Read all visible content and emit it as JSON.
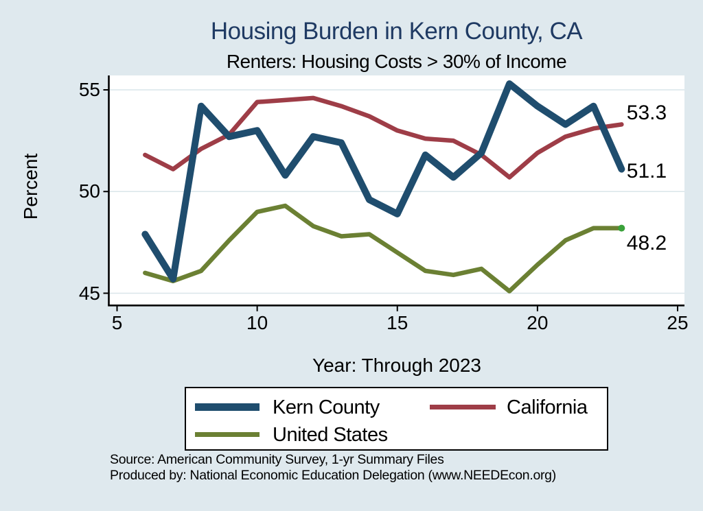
{
  "chart_data": {
    "type": "line",
    "title": "Housing Burden in Kern County, CA",
    "subtitle": "Renters: Housing Costs > 30% of Income",
    "xlabel": "Year: Through 2023",
    "ylabel": "Percent",
    "x": [
      6,
      7,
      8,
      9,
      10,
      11,
      12,
      13,
      14,
      15,
      16,
      17,
      18,
      19,
      20,
      21,
      22,
      23
    ],
    "x_ticks": [
      5,
      10,
      15,
      20,
      25
    ],
    "y_ticks": [
      55,
      50,
      45
    ],
    "xlim": [
      4.7,
      25.25
    ],
    "ylim": [
      44.4,
      55.7
    ],
    "grid": "horizontal-only",
    "legend_position": "bottom",
    "series": [
      {
        "name": "Kern County",
        "color": "#1f4d6e",
        "stroke_width": 10,
        "end_label": "51.1",
        "values": [
          47.9,
          45.7,
          54.2,
          52.7,
          53.0,
          50.8,
          52.7,
          52.4,
          49.6,
          48.9,
          51.8,
          50.7,
          51.9,
          55.3,
          54.2,
          53.3,
          54.2,
          51.1
        ]
      },
      {
        "name": "California",
        "color": "#9e3d47",
        "stroke_width": 6.5,
        "end_label": "53.3",
        "values": [
          51.8,
          51.1,
          52.1,
          52.8,
          54.4,
          54.5,
          54.6,
          54.2,
          53.7,
          53.0,
          52.6,
          52.5,
          51.8,
          50.7,
          51.9,
          52.7,
          53.1,
          53.3
        ]
      },
      {
        "name": "United States",
        "color": "#6b8033",
        "stroke_width": 6.5,
        "end_label": "48.2",
        "end_marker": true,
        "values": [
          46.0,
          45.6,
          46.1,
          47.6,
          49.0,
          49.3,
          48.3,
          47.8,
          47.9,
          47.0,
          46.1,
          45.9,
          46.2,
          45.1,
          46.4,
          47.6,
          48.2,
          48.2
        ]
      }
    ],
    "colors": {
      "background": "#dfe9ee",
      "plot_background": "#ffffff",
      "gridline": "#d9e6ea",
      "axis": "#000000",
      "title_text": "#1f3a63",
      "end_dot": "#3aa13a"
    }
  },
  "footer": {
    "line1": "Source: American Community Survey, 1-yr Summary Files",
    "line2": "Produced by: National Economic Education Delegation (www.NEEDEcon.org)"
  }
}
